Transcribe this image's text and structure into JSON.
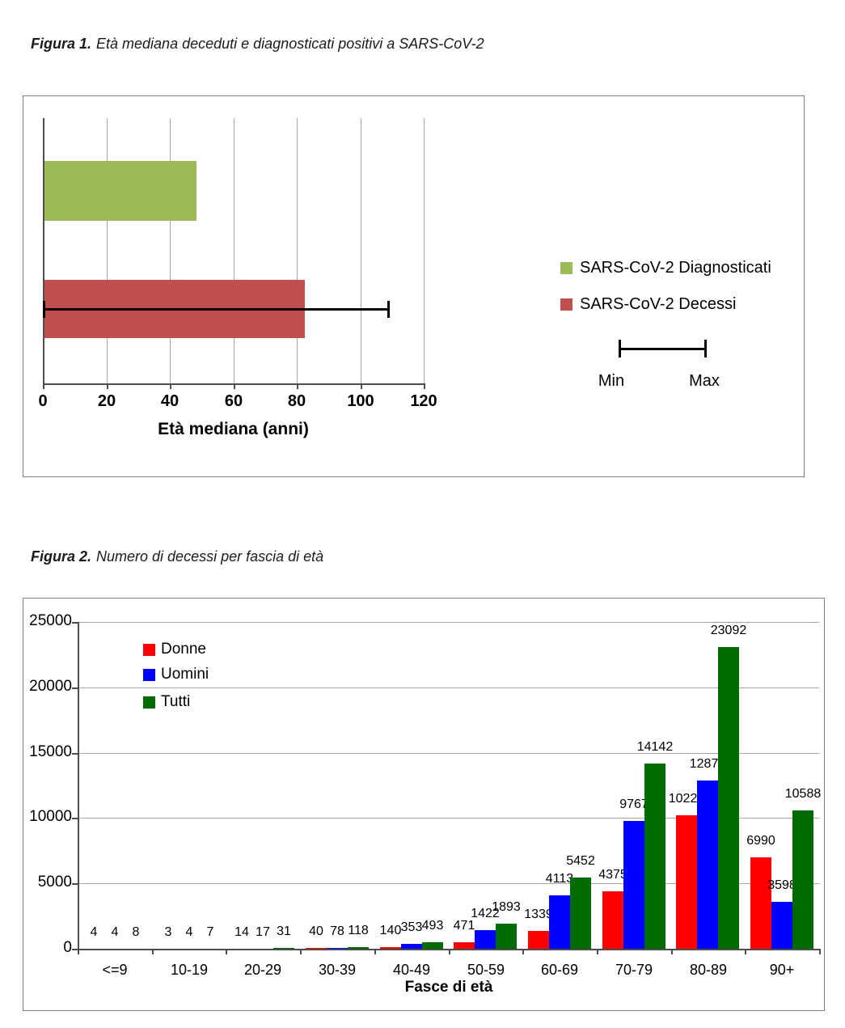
{
  "figures": {
    "fig1": {
      "title_bold": "Figura 1.",
      "title_rest": "Età mediana deceduti e diagnosticati positivi a SARS-CoV-2"
    },
    "fig2": {
      "title_bold": "Figura 2.",
      "title_rest": "Numero di decessi per fascia di età"
    }
  },
  "chart_data": [
    {
      "type": "bar",
      "orientation": "horizontal",
      "title": "Età mediana deceduti e diagnosticati positivi a SARS-CoV-2",
      "categories": [
        "SARS-CoV-2 Diagnosticati",
        "SARS-CoV-2 Decessi"
      ],
      "values": [
        48,
        82
      ],
      "colors": [
        "#9bbb59",
        "#c0504d"
      ],
      "error_bar": {
        "applies_to": "SARS-CoV-2 Decessi",
        "min": 0,
        "max": 109,
        "min_label": "Min",
        "max_label": "Max"
      },
      "xlabel": "Età mediana (anni)",
      "xlim": [
        0,
        120
      ],
      "xticks": [
        0,
        20,
        40,
        60,
        80,
        100,
        120
      ],
      "grid": true,
      "legend_position": "right"
    },
    {
      "type": "bar",
      "title": "Numero di decessi per fascia di età",
      "categories": [
        "<=9",
        "10-19",
        "20-29",
        "30-39",
        "40-49",
        "50-59",
        "60-69",
        "70-79",
        "80-89",
        "90+"
      ],
      "series": [
        {
          "name": "Donne",
          "color": "#ff0000",
          "values": [
            4,
            3,
            14,
            40,
            140,
            471,
            1339,
            4375,
            10220,
            6990
          ]
        },
        {
          "name": "Uomini",
          "color": "#0000ff",
          "values": [
            4,
            4,
            17,
            78,
            353,
            1422,
            4113,
            9767,
            12872,
            3598
          ]
        },
        {
          "name": "Tutti",
          "color": "#006b00",
          "values": [
            8,
            7,
            31,
            118,
            493,
            1893,
            5452,
            14142,
            23092,
            10588
          ]
        }
      ],
      "xlabel": "Fasce di età",
      "ylabel": "",
      "ylim": [
        0,
        25000
      ],
      "yticks": [
        0,
        5000,
        10000,
        15000,
        20000,
        25000
      ],
      "grid": true,
      "legend_position": "top-left-inside",
      "data_labels": true
    }
  ]
}
